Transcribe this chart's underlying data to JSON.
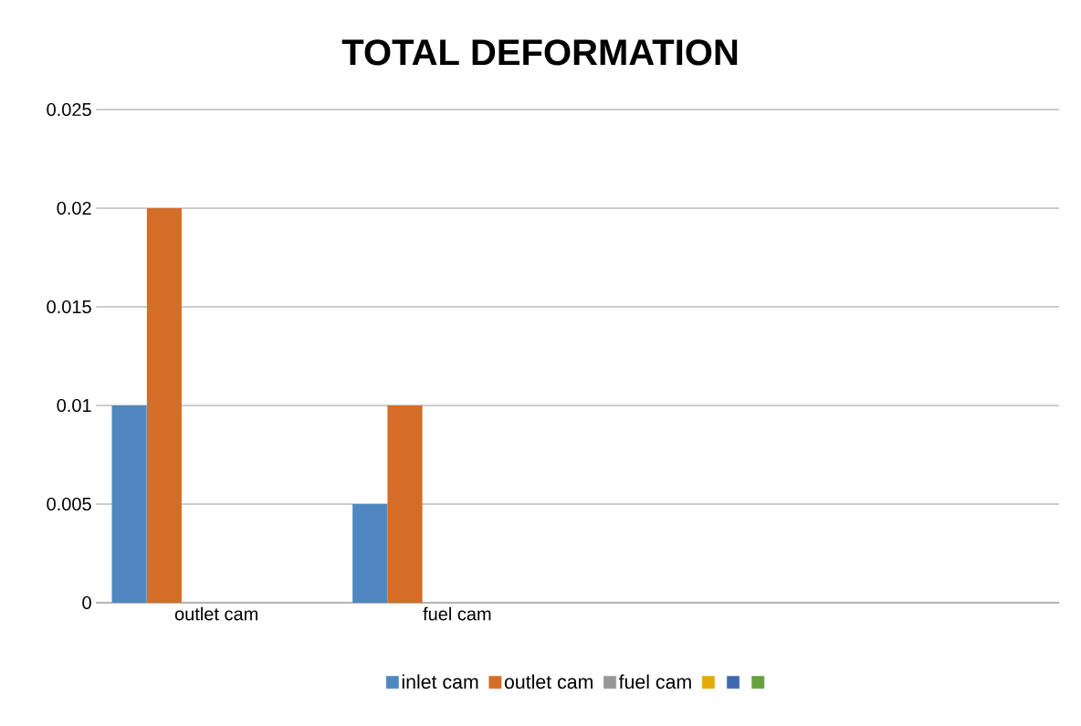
{
  "chart_data": {
    "type": "bar",
    "title": "TOTAL DEFORMATION",
    "categories": [
      "outlet cam",
      "fuel cam",
      null,
      null
    ],
    "series": [
      {
        "name": "inlet cam",
        "color": "#4f88c0",
        "values": [
          0.01,
          0.005,
          null,
          null
        ]
      },
      {
        "name": "outlet cam",
        "color": "#d46d28",
        "values": [
          0.02,
          0.01,
          null,
          null
        ]
      },
      {
        "name": "fuel cam",
        "color": "#979797",
        "values": [
          null,
          null,
          null,
          null
        ]
      },
      {
        "color": "#e3ab06",
        "values": [
          null,
          null,
          null,
          null
        ]
      },
      {
        "color": "#3f68b0",
        "values": [
          null,
          null,
          null,
          null
        ]
      },
      {
        "color": "#67a03e",
        "values": [
          null,
          null,
          null,
          null
        ]
      }
    ],
    "ylim": [
      0,
      0.025
    ],
    "yticks": [
      0,
      0.005,
      0.01,
      0.015,
      0.02,
      0.025
    ],
    "grid": "y",
    "legend": "bottom"
  }
}
